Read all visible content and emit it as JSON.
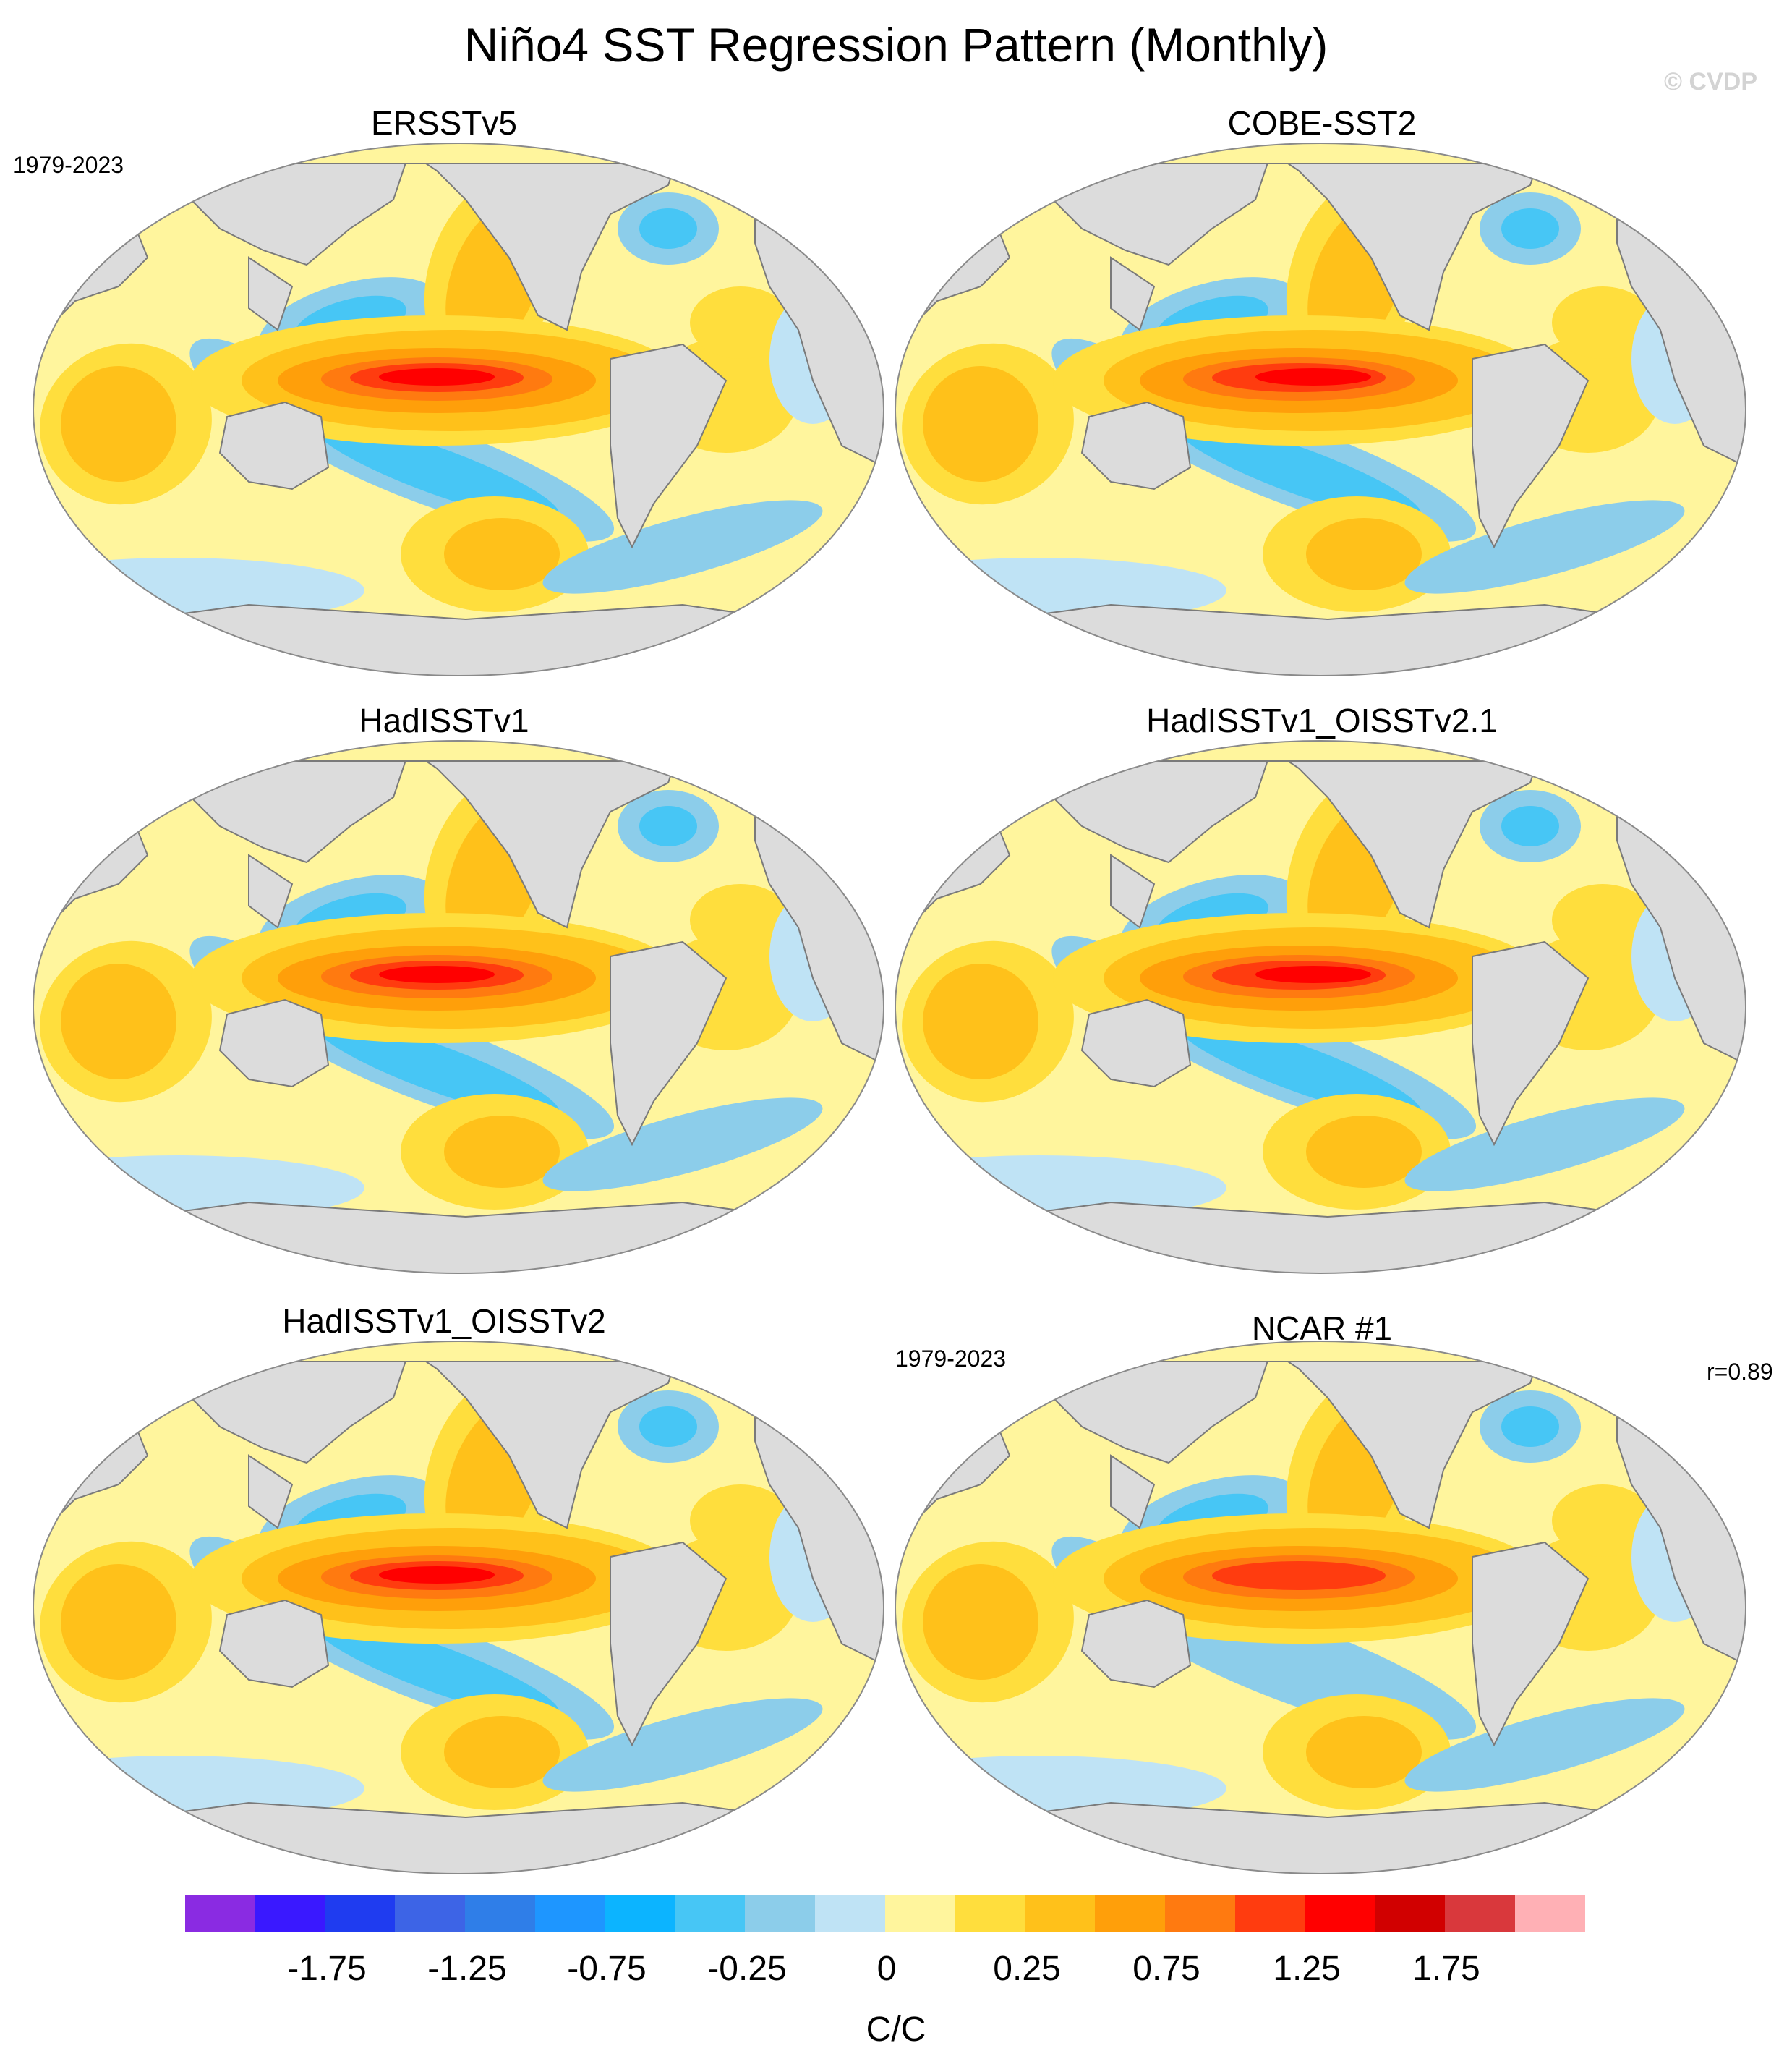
{
  "figure": {
    "title": "Niño4 SST Regression Pattern (Monthly)",
    "credit": "© CVDP"
  },
  "panels": [
    {
      "title": "ERSSTv5",
      "period": "1979-2023",
      "corr": ""
    },
    {
      "title": "COBE-SST2",
      "period": "",
      "corr": ""
    },
    {
      "title": "HadISSTv1",
      "period": "",
      "corr": ""
    },
    {
      "title": "HadISSTv1_OISSTv2.1",
      "period": "",
      "corr": ""
    },
    {
      "title": "HadISSTv1_OISSTv2",
      "period": "",
      "corr": ""
    },
    {
      "title": "NCAR #1",
      "period": "1979-2023",
      "corr": "r=0.89"
    }
  ],
  "colorbar": {
    "colors": [
      "#8a2be2",
      "#3a18ff",
      "#1f3cf0",
      "#3d64e6",
      "#2f7ee8",
      "#1e96ff",
      "#0cb4ff",
      "#47c6f5",
      "#8ccdea",
      "#bfe3f5",
      "#fff59d",
      "#ffde3d",
      "#ffc11a",
      "#ff9f0a",
      "#ff7a10",
      "#ff3c0f",
      "#ff0000",
      "#d10000",
      "#d9383c",
      "#ffb0b5"
    ],
    "tick_labels": [
      "-1.75",
      "-1.25",
      "-0.75",
      "-0.25",
      "0",
      "0.25",
      "0.75",
      "1.25",
      "1.75"
    ],
    "units": "C/C"
  },
  "map_colors": {
    "land": "#dcdcdc",
    "coast": "#7a7a7a",
    "cool": "#8ccdea",
    "strong_cool": "#47c6f5",
    "weak_cool": "#bfe3f5",
    "neutral": "#fff59d",
    "warm": "#ffde3d",
    "mid_warm": "#ffc11a",
    "strong_warm": "#ff9f0a",
    "hot": "#ff7a10",
    "hotter": "#ff3c0f",
    "hottest": "#ff0000"
  }
}
